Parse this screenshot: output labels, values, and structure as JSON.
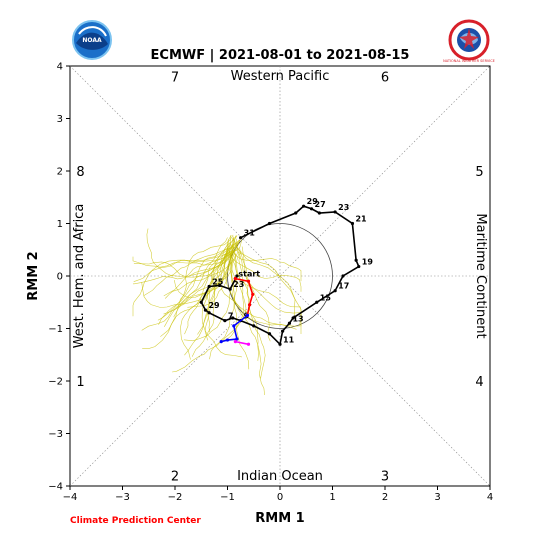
{
  "header": {
    "title": "ECMWF | 2021-08-01 to 2021-08-15",
    "left_logo_text": "NOAA",
    "right_logo_text": "NATIONAL WEATHER SERVICE"
  },
  "footer": {
    "credit": "Climate Prediction Center"
  },
  "colors": {
    "observed": "#000000",
    "red_segment": "#ff0000",
    "blue_segment": "#0000ff",
    "magenta_segment": "#ff00ff",
    "ensemble": "#c8c000",
    "credit": "#ff0000"
  },
  "chart_data": {
    "type": "line",
    "title": "ECMWF | 2021-08-01 to 2021-08-15",
    "xlabel": "RMM 1",
    "ylabel": "RMM 2",
    "xlim": [
      -4,
      4
    ],
    "ylim": [
      -4,
      4
    ],
    "xticks": [
      -4,
      -3,
      -2,
      -1,
      0,
      1,
      2,
      3,
      4
    ],
    "yticks": [
      -4,
      -3,
      -2,
      -1,
      0,
      1,
      2,
      3,
      4
    ],
    "grid": false,
    "unit_circle_radius": 1,
    "region_labels": [
      {
        "text": "Western Pacific",
        "side": "top"
      },
      {
        "text": "Indian Ocean",
        "side": "bottom"
      },
      {
        "text": "West. Hem. and Africa",
        "side": "left"
      },
      {
        "text": "Maritime Continent",
        "side": "right"
      }
    ],
    "phase_labels": [
      {
        "text": "1",
        "x": -3.8,
        "y": -2.0
      },
      {
        "text": "2",
        "x": -2.0,
        "y": -3.8
      },
      {
        "text": "3",
        "x": 2.0,
        "y": -3.8
      },
      {
        "text": "4",
        "x": 3.8,
        "y": -2.0
      },
      {
        "text": "5",
        "x": 3.8,
        "y": 2.0
      },
      {
        "text": "6",
        "x": 2.0,
        "y": 3.8
      },
      {
        "text": "7",
        "x": -2.0,
        "y": 3.8
      },
      {
        "text": "8",
        "x": -3.8,
        "y": 2.0
      }
    ],
    "series": [
      {
        "color": "#000000",
        "points": [
          {
            "x": -0.75,
            "y": 0.73,
            "label": "31"
          },
          {
            "x": -0.2,
            "y": 1.0
          },
          {
            "x": 0.3,
            "y": 1.2
          },
          {
            "x": 0.45,
            "y": 1.33,
            "label": "29"
          },
          {
            "x": 0.6,
            "y": 1.28,
            "label": "27"
          },
          {
            "x": 0.75,
            "y": 1.2
          },
          {
            "x": 1.05,
            "y": 1.22,
            "label": "23"
          },
          {
            "x": 1.38,
            "y": 1.0,
            "label": "21"
          },
          {
            "x": 1.45,
            "y": 0.3
          },
          {
            "x": 1.5,
            "y": 0.18,
            "label": "19"
          },
          {
            "x": 1.2,
            "y": 0.0
          },
          {
            "x": 1.05,
            "y": -0.28,
            "label": "17"
          },
          {
            "x": 0.7,
            "y": -0.5,
            "label": "15"
          },
          {
            "x": 0.25,
            "y": -0.8
          },
          {
            "x": 0.18,
            "y": -0.9,
            "label": "13"
          },
          {
            "x": 0.05,
            "y": -1.05
          },
          {
            "x": 0.0,
            "y": -1.3,
            "label": "11"
          },
          {
            "x": -0.2,
            "y": -1.1
          },
          {
            "x": -0.5,
            "y": -0.95
          },
          {
            "x": -0.75,
            "y": -0.85,
            "label": "9"
          },
          {
            "x": -0.9,
            "y": -0.8
          },
          {
            "x": -1.05,
            "y": -0.85,
            "label": "7"
          },
          {
            "x": -1.35,
            "y": -0.7
          },
          {
            "x": -1.42,
            "y": -0.65,
            "label": "29"
          },
          {
            "x": -1.5,
            "y": -0.5
          },
          {
            "x": -1.35,
            "y": -0.2,
            "label": "25"
          },
          {
            "x": -1.15,
            "y": -0.18
          },
          {
            "x": -0.95,
            "y": -0.25,
            "label": "23"
          },
          {
            "x": -0.82,
            "y": 0.0
          },
          {
            "x": -0.85,
            "y": -0.05,
            "label": "start"
          }
        ]
      },
      {
        "color": "#ff0000",
        "points": [
          {
            "x": -0.85,
            "y": -0.05
          },
          {
            "x": -0.6,
            "y": -0.1
          },
          {
            "x": -0.52,
            "y": -0.35
          },
          {
            "x": -0.58,
            "y": -0.55
          },
          {
            "x": -0.62,
            "y": -0.75
          }
        ]
      },
      {
        "color": "#0000ff",
        "points": [
          {
            "x": -0.62,
            "y": -0.75
          },
          {
            "x": -0.88,
            "y": -0.95
          },
          {
            "x": -0.82,
            "y": -1.2
          },
          {
            "x": -1.0,
            "y": -1.22
          },
          {
            "x": -1.12,
            "y": -1.25
          }
        ]
      },
      {
        "color": "#ff00ff",
        "points": [
          {
            "x": -0.85,
            "y": -1.25
          },
          {
            "x": -0.6,
            "y": -1.3
          }
        ]
      },
      {
        "color": "#c8c000",
        "name": "",
        "ensemble": true,
        "points": [
          {
            "x": -0.9,
            "y": 0.6
          },
          {
            "x": -1.2,
            "y": 0.2
          },
          {
            "x": -1.8,
            "y": -0.6
          },
          {
            "x": -2.2,
            "y": -1.5
          }
        ]
      }
    ]
  }
}
